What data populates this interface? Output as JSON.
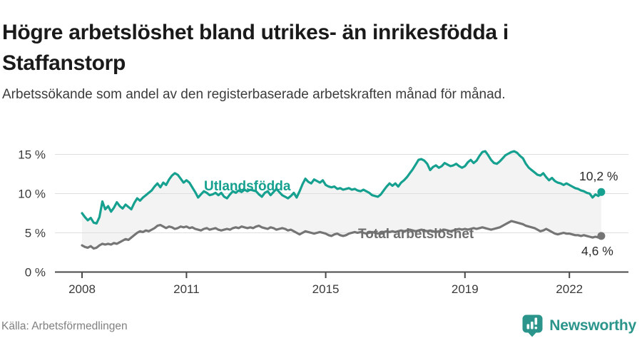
{
  "accent_color": "#16a08f",
  "secondary_color": "#757575",
  "brand_color": "#2b958b",
  "footer": {
    "source": "Källa: Arbetsförmedlingen",
    "logo_text": "Newsworthy",
    "logo_icon": "bar-chart-speech-bubble-icon"
  },
  "chart_data": {
    "type": "line",
    "title": "Högre arbetslöshet bland utrikes- än inrikesfödda i Staffanstorp",
    "subtitle": "Arbetssökande som andel av den registerbaserade arbetskraften månad för månad.",
    "x_start": "2008-01",
    "x_end": "2022-12",
    "x_interval": "monthly",
    "grid": "horizontal",
    "legend_position": "inline-labels",
    "x_ticks": [
      2008,
      2011,
      2015,
      2019,
      2022
    ],
    "y_axis": {
      "labels": [
        "0 %",
        "5 %",
        "10 %",
        "15 %"
      ],
      "values": [
        0,
        5,
        10,
        15
      ],
      "ylim": [
        0,
        17
      ]
    },
    "area_fill_between_series": "#f3f3f3",
    "series": [
      {
        "name": "Utlandsfödda",
        "color": "#16a08f",
        "end_label": "10,2 %",
        "end_value": 10.2,
        "values": [
          7.5,
          7.0,
          6.6,
          6.9,
          6.3,
          6.2,
          7.0,
          9.0,
          8.0,
          8.4,
          7.7,
          8.2,
          8.9,
          8.4,
          8.1,
          8.6,
          8.3,
          8.0,
          8.8,
          9.4,
          9.1,
          9.5,
          9.8,
          10.1,
          10.4,
          10.9,
          11.3,
          10.8,
          11.4,
          11.1,
          11.8,
          12.3,
          12.6,
          12.4,
          11.9,
          11.4,
          11.7,
          11.4,
          10.8,
          10.2,
          9.5,
          9.9,
          10.3,
          10.1,
          9.8,
          9.9,
          10.1,
          9.8,
          10.1,
          9.6,
          9.4,
          9.9,
          10.3,
          10.1,
          10.4,
          10.2,
          10.5,
          10.3,
          10.5,
          10.4,
          10.3,
          9.9,
          9.6,
          10.1,
          10.3,
          9.8,
          10.2,
          10.6,
          10.2,
          9.8,
          9.6,
          9.4,
          9.7,
          10.1,
          9.5,
          10.3,
          11.2,
          11.9,
          11.5,
          11.3,
          11.8,
          11.6,
          11.4,
          11.7,
          11.1,
          10.9,
          10.8,
          10.9,
          10.6,
          10.7,
          10.5,
          10.6,
          10.7,
          10.5,
          10.6,
          10.4,
          10.3,
          10.5,
          10.3,
          10.1,
          9.8,
          9.7,
          9.6,
          9.9,
          10.4,
          10.9,
          11.3,
          11.0,
          11.3,
          10.9,
          11.4,
          11.7,
          12.1,
          12.6,
          13.1,
          13.7,
          14.3,
          14.4,
          14.2,
          13.8,
          13.0,
          13.4,
          13.6,
          13.3,
          13.5,
          13.9,
          13.7,
          13.5,
          13.6,
          13.8,
          13.5,
          13.3,
          13.5,
          14.0,
          14.3,
          13.9,
          14.2,
          14.8,
          15.3,
          15.4,
          14.9,
          14.3,
          13.9,
          13.8,
          14.1,
          14.5,
          14.9,
          15.1,
          15.3,
          15.4,
          15.2,
          14.8,
          14.5,
          13.8,
          13.3,
          13.0,
          12.7,
          12.4,
          12.3,
          12.6,
          12.1,
          11.7,
          12.0,
          11.6,
          11.4,
          11.3,
          11.1,
          11.3,
          11.1,
          10.9,
          10.7,
          10.6,
          10.4,
          10.3,
          10.1,
          10.0,
          9.5,
          9.9,
          9.7,
          10.2
        ]
      },
      {
        "name": "Total arbetslöshet",
        "color": "#757575",
        "end_label": "4,6 %",
        "end_value": 4.6,
        "values": [
          3.4,
          3.2,
          3.1,
          3.3,
          3.0,
          3.1,
          3.4,
          3.6,
          3.5,
          3.6,
          3.5,
          3.7,
          3.6,
          3.8,
          4.0,
          4.2,
          4.1,
          4.4,
          4.7,
          5.0,
          5.2,
          5.1,
          5.3,
          5.2,
          5.4,
          5.6,
          5.9,
          6.0,
          5.8,
          5.6,
          5.8,
          5.7,
          5.5,
          5.6,
          5.8,
          5.7,
          5.8,
          5.6,
          5.7,
          5.5,
          5.4,
          5.3,
          5.5,
          5.6,
          5.4,
          5.5,
          5.6,
          5.4,
          5.3,
          5.4,
          5.5,
          5.4,
          5.6,
          5.7,
          5.6,
          5.8,
          5.7,
          5.6,
          5.7,
          5.6,
          5.8,
          5.9,
          5.7,
          5.6,
          5.5,
          5.7,
          5.6,
          5.4,
          5.5,
          5.6,
          5.5,
          5.3,
          5.4,
          5.2,
          5.0,
          4.8,
          5.0,
          5.2,
          5.1,
          5.0,
          4.9,
          5.0,
          5.1,
          5.0,
          4.9,
          4.7,
          4.6,
          4.8,
          4.9,
          4.7,
          4.6,
          4.7,
          4.9,
          5.0,
          5.1,
          5.0,
          5.1,
          5.0,
          4.9,
          5.0,
          5.1,
          5.0,
          4.9,
          5.0,
          5.1,
          5.2,
          5.1,
          5.2,
          5.1,
          5.2,
          5.3,
          5.2,
          5.3,
          5.4,
          5.3,
          5.2,
          5.3,
          5.4,
          5.3,
          5.2,
          5.3,
          5.2,
          5.1,
          5.2,
          5.3,
          5.4,
          5.3,
          5.2,
          5.3,
          5.4,
          5.5,
          5.4,
          5.5,
          5.4,
          5.5,
          5.6,
          5.5,
          5.6,
          5.7,
          5.6,
          5.5,
          5.4,
          5.5,
          5.6,
          5.7,
          5.9,
          6.1,
          6.3,
          6.5,
          6.4,
          6.3,
          6.2,
          6.1,
          5.9,
          5.8,
          5.7,
          5.6,
          5.4,
          5.2,
          5.3,
          5.5,
          5.3,
          5.1,
          4.9,
          4.8,
          4.9,
          5.0,
          4.9,
          4.9,
          4.8,
          4.7,
          4.7,
          4.6,
          4.7,
          4.6,
          4.5,
          4.4,
          4.5,
          4.4,
          4.6
        ]
      }
    ]
  }
}
